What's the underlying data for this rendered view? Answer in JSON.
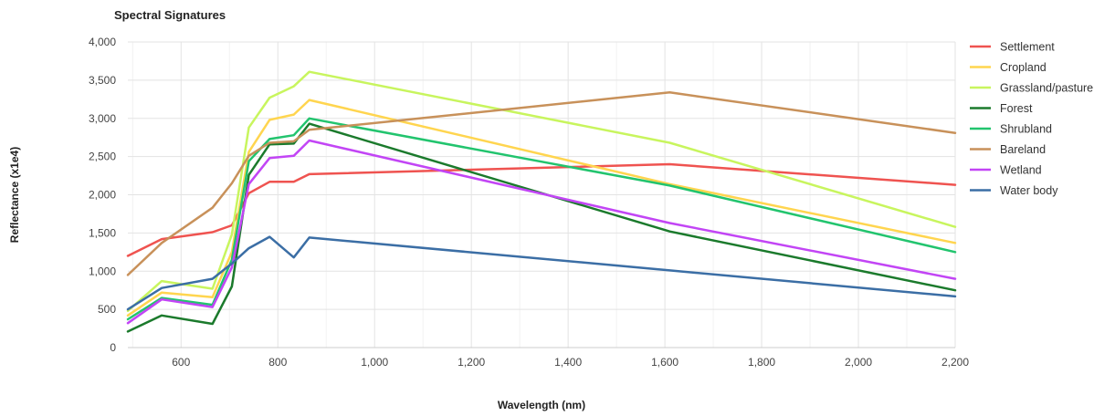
{
  "chart_data": {
    "type": "line",
    "title": "Spectral Signatures",
    "xlabel": "Wavelength (nm)",
    "ylabel": "Reflectance (x1e4)",
    "xlim": [
      490,
      2200
    ],
    "ylim": [
      0,
      4000
    ],
    "x_ticks": [
      600,
      800,
      1000,
      1200,
      1400,
      1600,
      1800,
      2000,
      2200
    ],
    "x_tick_labels": [
      "600",
      "800",
      "1,000",
      "1,200",
      "1,400",
      "1,600",
      "1,800",
      "2,000",
      "2,200"
    ],
    "y_ticks": [
      0,
      500,
      1000,
      1500,
      2000,
      2500,
      3000,
      3500,
      4000
    ],
    "y_tick_labels": [
      "0",
      "500",
      "1,000",
      "1,500",
      "2,000",
      "2,500",
      "3,000",
      "3,500",
      "4,000"
    ],
    "grid": true,
    "legend_position": "right",
    "x": [
      490,
      560,
      665,
      705,
      740,
      783,
      833,
      865,
      1610,
      2200
    ],
    "series": [
      {
        "name": "Settlement",
        "color": "#ef5350",
        "values": [
          1200,
          1420,
          1510,
          1600,
          2020,
          2170,
          2170,
          2270,
          2400,
          2130
        ]
      },
      {
        "name": "Cropland",
        "color": "#ffd54f",
        "values": [
          420,
          720,
          660,
          1250,
          2560,
          2980,
          3050,
          3240,
          2140,
          1370
        ]
      },
      {
        "name": "Grassland/pasture",
        "color": "#c8f55e",
        "values": [
          480,
          870,
          770,
          1480,
          2880,
          3270,
          3420,
          3610,
          2680,
          1580
        ]
      },
      {
        "name": "Forest",
        "color": "#1b7a2c",
        "values": [
          210,
          420,
          310,
          800,
          2260,
          2660,
          2670,
          2930,
          1520,
          750
        ]
      },
      {
        "name": "Shrubland",
        "color": "#22c46e",
        "values": [
          370,
          650,
          560,
          1150,
          2440,
          2730,
          2780,
          3000,
          2120,
          1250
        ]
      },
      {
        "name": "Bareland",
        "color": "#c8915a",
        "values": [
          950,
          1370,
          1830,
          2150,
          2510,
          2680,
          2700,
          2850,
          3340,
          2810
        ]
      },
      {
        "name": "Wetland",
        "color": "#c245f5",
        "values": [
          320,
          630,
          530,
          1050,
          2140,
          2480,
          2510,
          2710,
          1630,
          900
        ]
      },
      {
        "name": "Water body",
        "color": "#3b6ea5",
        "values": [
          500,
          780,
          900,
          1100,
          1300,
          1450,
          1180,
          1440,
          1010,
          670
        ]
      }
    ]
  }
}
